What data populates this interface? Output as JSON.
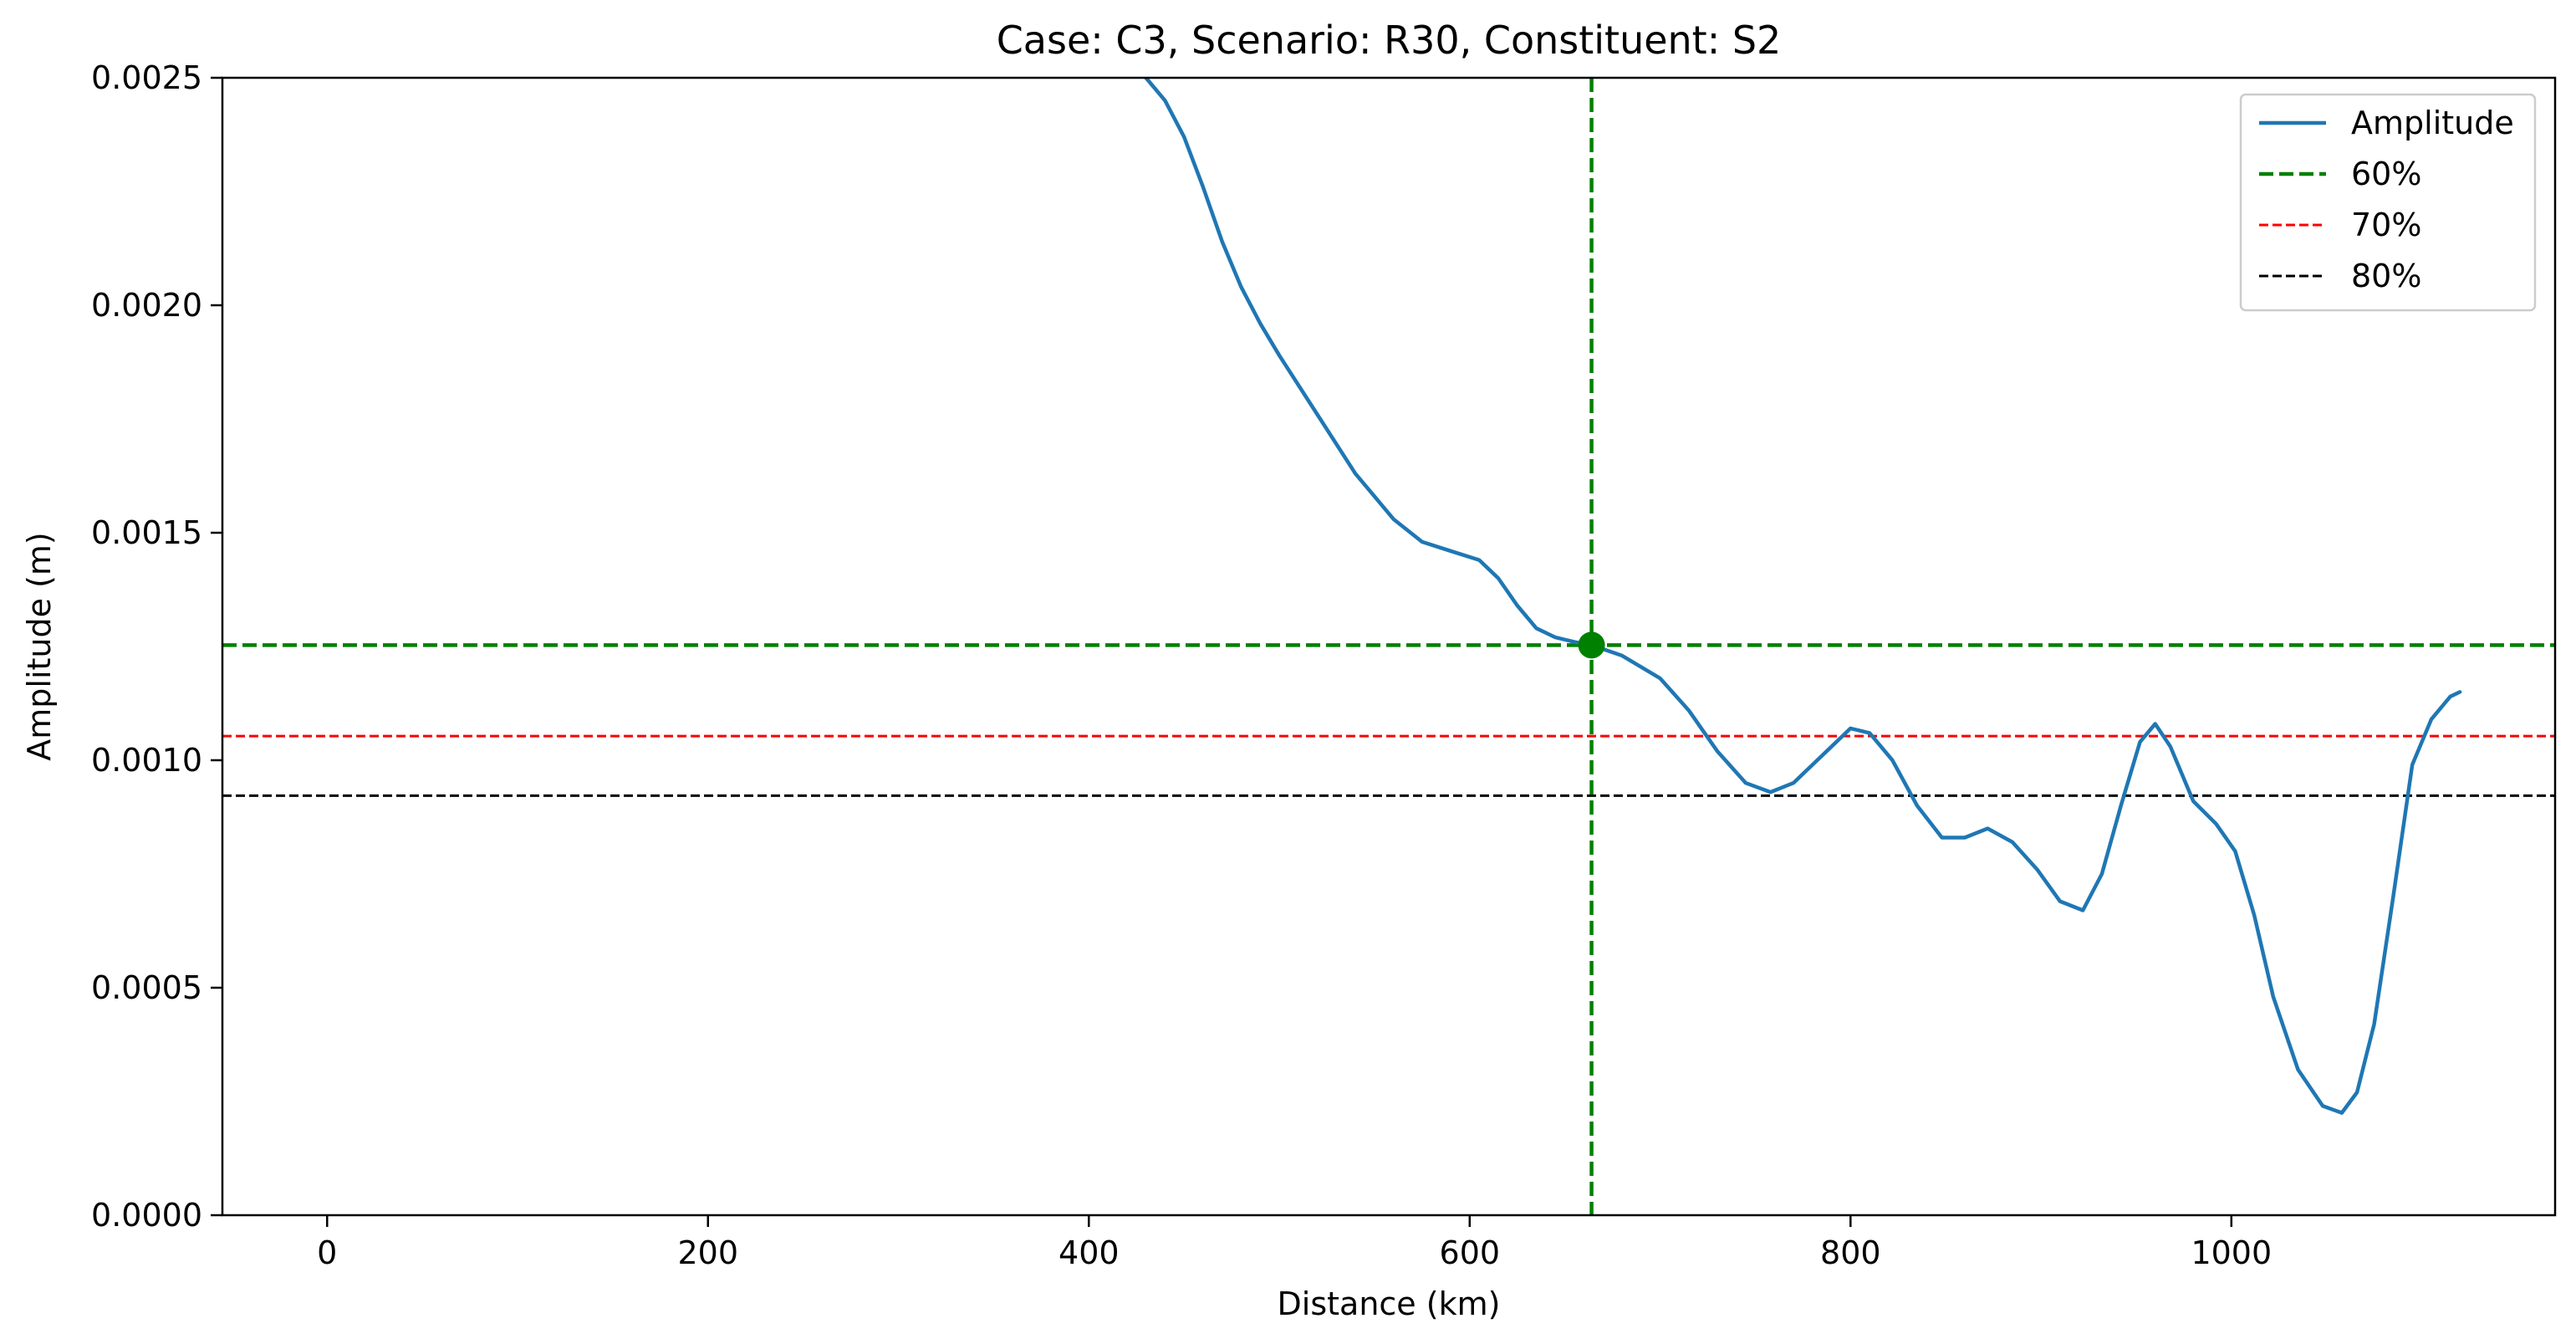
{
  "chart_data": {
    "type": "line",
    "title": "Case: C3, Scenario: R30, Constituent: S2",
    "xlabel": "Distance (km)",
    "ylabel": "Amplitude (m)",
    "xlim": [
      -55,
      1170
    ],
    "ylim": [
      0,
      0.0025
    ],
    "xticks": [
      0,
      200,
      400,
      600,
      800,
      1000
    ],
    "xtick_labels": [
      "0",
      "200",
      "400",
      "600",
      "800",
      "1000"
    ],
    "yticks": [
      0,
      0.0005,
      0.001,
      0.0015,
      0.002,
      0.0025
    ],
    "ytick_labels": [
      "0.0000",
      "0.0005",
      "0.0010",
      "0.0015",
      "0.0020",
      "0.0025"
    ],
    "grid": false,
    "legend_position": "top-right",
    "series": [
      {
        "name": "Amplitude",
        "color": "#1f77b4",
        "points": [
          [
            420,
            0.00253
          ],
          [
            430,
            0.0025
          ],
          [
            440,
            0.00245
          ],
          [
            450,
            0.00237
          ],
          [
            460,
            0.00226
          ],
          [
            470,
            0.00214
          ],
          [
            480,
            0.00204
          ],
          [
            490,
            0.00196
          ],
          [
            500,
            0.00189
          ],
          [
            520,
            0.00176
          ],
          [
            540,
            0.00163
          ],
          [
            560,
            0.00153
          ],
          [
            575,
            0.00148
          ],
          [
            590,
            0.00146
          ],
          [
            605,
            0.00144
          ],
          [
            615,
            0.0014
          ],
          [
            625,
            0.00134
          ],
          [
            635,
            0.00129
          ],
          [
            645,
            0.00127
          ],
          [
            655,
            0.00126
          ],
          [
            664,
            0.001253
          ],
          [
            680,
            0.00123
          ],
          [
            700,
            0.00118
          ],
          [
            715,
            0.00111
          ],
          [
            730,
            0.00102
          ],
          [
            745,
            0.00095
          ],
          [
            758,
            0.00093
          ],
          [
            770,
            0.00095
          ],
          [
            785,
            0.00101
          ],
          [
            800,
            0.00107
          ],
          [
            810,
            0.00106
          ],
          [
            822,
            0.001
          ],
          [
            835,
            0.0009
          ],
          [
            848,
            0.00083
          ],
          [
            860,
            0.00083
          ],
          [
            872,
            0.00085
          ],
          [
            885,
            0.00082
          ],
          [
            898,
            0.00076
          ],
          [
            910,
            0.00069
          ],
          [
            922,
            0.00067
          ],
          [
            932,
            0.00075
          ],
          [
            942,
            0.0009
          ],
          [
            952,
            0.00104
          ],
          [
            960,
            0.00108
          ],
          [
            968,
            0.00103
          ],
          [
            980,
            0.00091
          ],
          [
            992,
            0.00086
          ],
          [
            1002,
            0.0008
          ],
          [
            1012,
            0.00066
          ],
          [
            1022,
            0.00048
          ],
          [
            1035,
            0.00032
          ],
          [
            1048,
            0.00024
          ],
          [
            1058,
            0.000225
          ],
          [
            1066,
            0.00027
          ],
          [
            1075,
            0.00042
          ],
          [
            1085,
            0.0007
          ],
          [
            1095,
            0.00099
          ],
          [
            1105,
            0.00109
          ],
          [
            1115,
            0.00114
          ],
          [
            1120,
            0.00115
          ]
        ]
      },
      {
        "name": "60%",
        "color": "#008000",
        "kind": "crosshair",
        "x": 664,
        "y": 0.001253
      },
      {
        "name": "70%",
        "color": "#ff0000",
        "kind": "hline",
        "y": 0.001053
      },
      {
        "name": "80%",
        "color": "#000000",
        "kind": "hline",
        "y": 0.000922
      }
    ],
    "marker": {
      "x": 664,
      "y": 0.001253,
      "color": "#008000"
    }
  }
}
